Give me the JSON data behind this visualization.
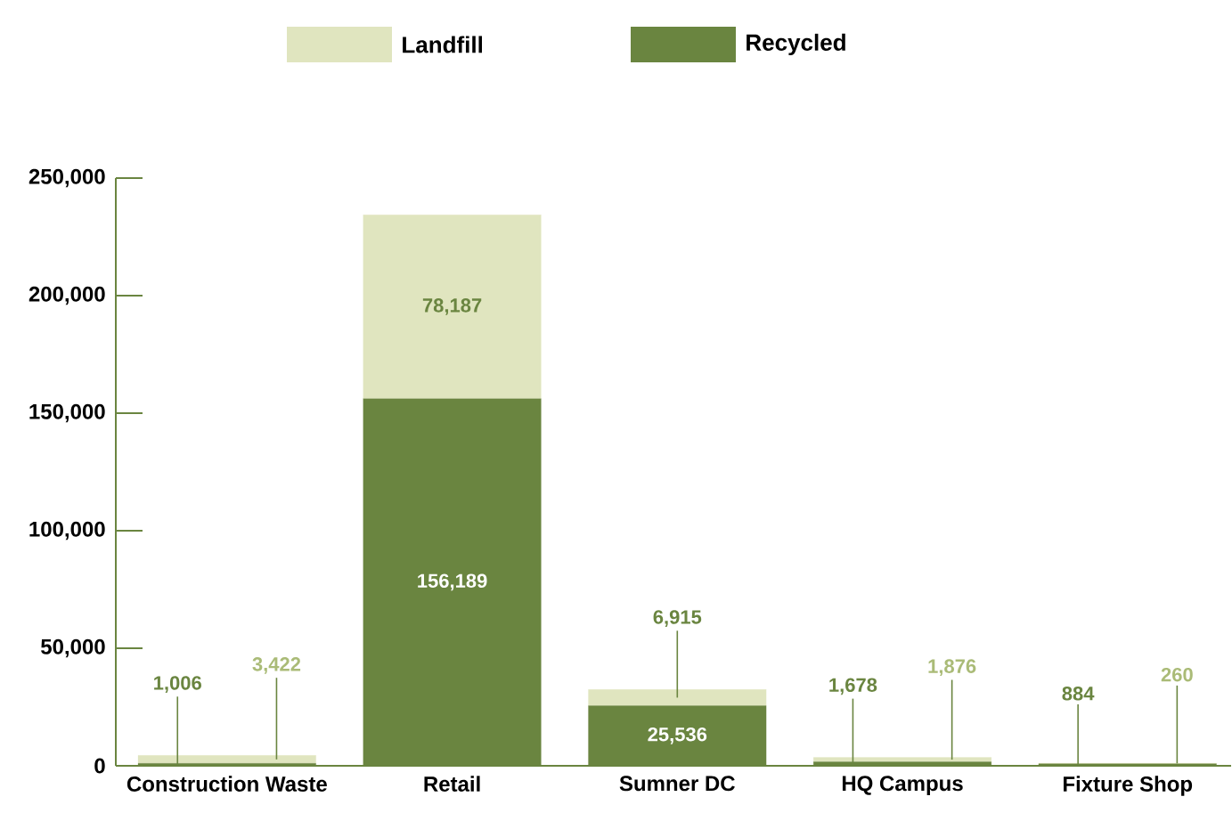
{
  "chart_data": {
    "type": "bar",
    "stacked": true,
    "categories": [
      "Construction Waste",
      "Retail",
      "Sumner DC",
      "HQ Campus",
      "Fixture Shop"
    ],
    "series": [
      {
        "name": "Recycled",
        "color": "#6a8540",
        "values": [
          1006,
          156189,
          25536,
          1678,
          884
        ],
        "value_labels": [
          "1,006",
          "156,189",
          "25,536",
          "1,678",
          "884"
        ]
      },
      {
        "name": "Landfill",
        "color": "#e0e5bf",
        "values": [
          3422,
          78187,
          6915,
          1876,
          260
        ],
        "value_labels": [
          "3,422",
          "78,187",
          "6,915",
          "1,876",
          "260"
        ]
      }
    ],
    "ylim": [
      0,
      250000
    ],
    "yticks": [
      {
        "value": 0,
        "label": "0"
      },
      {
        "value": 50000,
        "label": "50,000"
      },
      {
        "value": 100000,
        "label": "100,000"
      },
      {
        "value": 150000,
        "label": "150,000"
      },
      {
        "value": 200000,
        "label": "200,000"
      },
      {
        "value": 250000,
        "label": "250,000"
      }
    ],
    "grid": false,
    "legend": "top"
  }
}
